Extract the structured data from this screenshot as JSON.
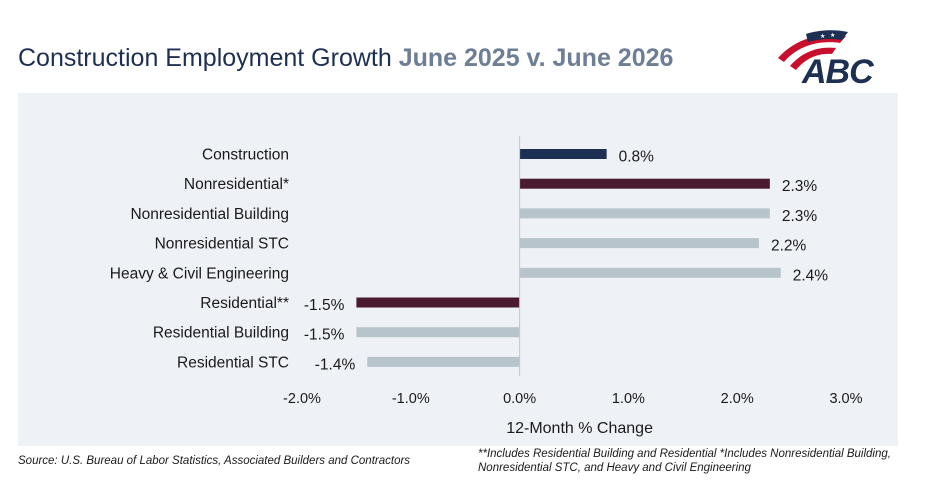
{
  "header": {
    "title_main": "Construction Employment Growth ",
    "title_sub": "June 2025 v. June 2026",
    "logo_text": "ABC"
  },
  "chart_data": {
    "type": "bar",
    "orientation": "horizontal",
    "categories": [
      "Construction",
      "Nonresidential*",
      "Nonresidential Building",
      "Nonresidential STC",
      "Heavy & Civil Engineering",
      "Residential**",
      "Residential Building",
      "Residential STC"
    ],
    "values": [
      0.8,
      2.3,
      2.3,
      2.2,
      2.4,
      -1.5,
      -1.5,
      -1.4
    ],
    "data_labels": [
      "0.8%",
      "2.3%",
      "2.3%",
      "2.2%",
      "2.4%",
      "-1.5%",
      "-1.5%",
      "-1.4%"
    ],
    "bar_colors": [
      "#1d2f52",
      "#4a1a30",
      "#b8c4cc",
      "#b8c4cc",
      "#b8c4cc",
      "#4a1a30",
      "#b8c4cc",
      "#b8c4cc"
    ],
    "xlim": [
      -2.0,
      3.0
    ],
    "x_ticks": [
      -2.0,
      -1.0,
      0.0,
      1.0,
      2.0,
      3.0
    ],
    "x_tick_labels": [
      "-2.0%",
      "-1.0%",
      "0.0%",
      "1.0%",
      "2.0%",
      "3.0%"
    ],
    "xlabel": "12-Month % Change",
    "title": "",
    "grid": false
  },
  "footer": {
    "source": "Source: U.S. Bureau of Labor Statistics, Associated Builders and Contractors",
    "footnote": "**Includes Residential Building and Residential *Includes Nonresidential Building, Nonresidential STC, and Heavy and Civil Engineering"
  }
}
